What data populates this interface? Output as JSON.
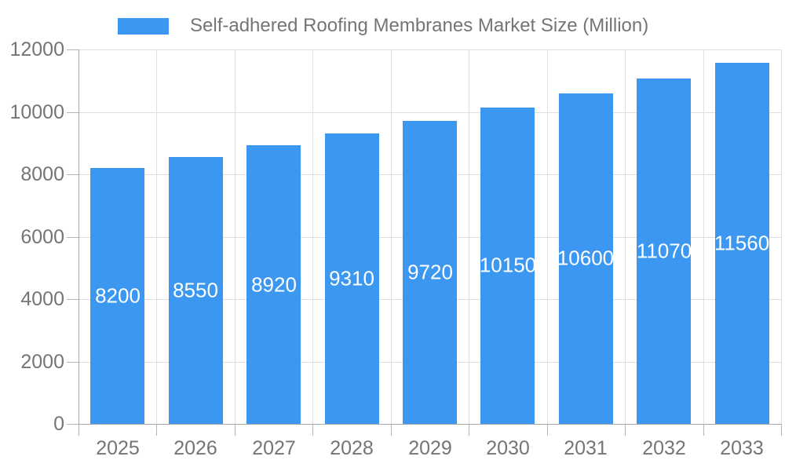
{
  "chart_data": {
    "type": "bar",
    "title": "Self-adhered Roofing Membranes Market Size (Million)",
    "categories": [
      "2025",
      "2026",
      "2027",
      "2028",
      "2029",
      "2030",
      "2031",
      "2032",
      "2033"
    ],
    "values": [
      8200,
      8550,
      8920,
      9310,
      9720,
      10150,
      10600,
      11070,
      11560
    ],
    "value_labels": [
      "8200",
      "8550",
      "8920",
      "9310",
      "9720",
      "10150",
      "10600",
      "11070",
      "11560"
    ],
    "xlabel": "",
    "ylabel": "",
    "ylim": [
      0,
      12000
    ],
    "yticks": [
      0,
      2000,
      4000,
      6000,
      8000,
      10000,
      12000
    ],
    "ytick_labels": [
      "0",
      "2000",
      "4000",
      "6000",
      "8000",
      "10000",
      "12000"
    ],
    "grid": true,
    "legend_position": "top",
    "colors": {
      "bar": "#3B97F0",
      "value_label": "#FFFFFF",
      "gridline": "#E0E0E0",
      "axis_line": "#A8A8A8",
      "tick_mark": "#B5B5B5",
      "text": "#757575",
      "background": "#FFFFFF"
    }
  }
}
